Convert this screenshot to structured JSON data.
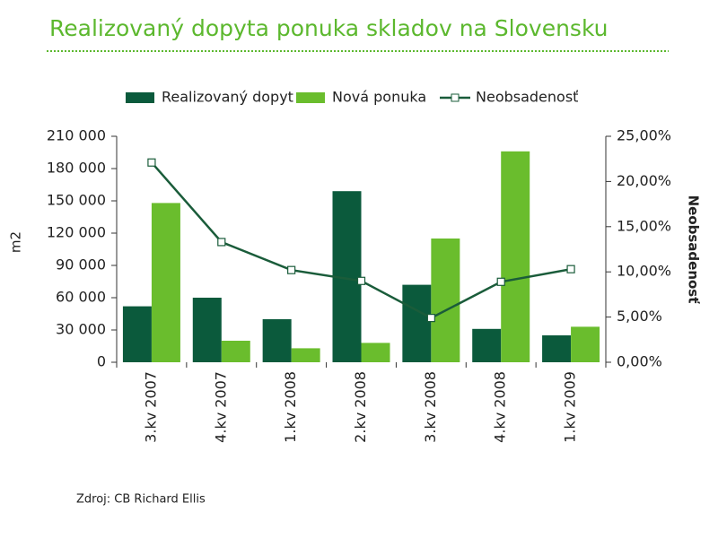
{
  "chart_data": {
    "type": "bar",
    "title": "Realizovaný dopyta ponuka skladov na Slovensku",
    "source": "Zdroj: CB Richard Ellis",
    "ylabel": "m2",
    "y2label": "Neobsadenosť",
    "categories": [
      "3.kv 2007",
      "4.kv 2007",
      "1.kv 2008",
      "2.kv 2008",
      "3.kv 2008",
      "4.kv 2008",
      "1.kv 2009"
    ],
    "series": [
      {
        "name": "Realizovaný dopyt",
        "type": "bar",
        "color": "#0b5a3c",
        "values": [
          52000,
          60000,
          40000,
          159000,
          72000,
          31000,
          25000
        ]
      },
      {
        "name": "Nová ponuka",
        "type": "bar",
        "color": "#6abd2d",
        "values": [
          148000,
          20000,
          13000,
          18000,
          115000,
          196000,
          33000
        ]
      },
      {
        "name": "Neobsadenosť",
        "type": "line",
        "axis": "y2",
        "color": "#1a5c3a",
        "values": [
          22.1,
          13.3,
          10.2,
          9.0,
          4.9,
          8.9,
          10.3
        ]
      }
    ],
    "ylim": [
      0,
      210000
    ],
    "yticks": [
      0,
      {
        "value": 30000,
        "label": "30 000"
      },
      {
        "value": 60000,
        "label": "60 000"
      },
      {
        "value": 90000,
        "label": "90 000"
      },
      {
        "value": 120000,
        "label": "120 000"
      },
      {
        "value": 150000,
        "label": "150 000"
      },
      {
        "value": 180000,
        "label": "180 000"
      },
      {
        "value": 210000,
        "label": "210 000"
      }
    ],
    "y2lim": [
      0,
      25
    ],
    "y2ticks": [
      {
        "value": 0,
        "label": "0,00%"
      },
      {
        "value": 5,
        "label": "5,00%"
      },
      {
        "value": 10,
        "label": "10,00%"
      },
      {
        "value": 15,
        "label": "15,00%"
      },
      {
        "value": 20,
        "label": "20,00%"
      },
      {
        "value": 25,
        "label": "25,00%"
      }
    ],
    "legend": "top"
  }
}
